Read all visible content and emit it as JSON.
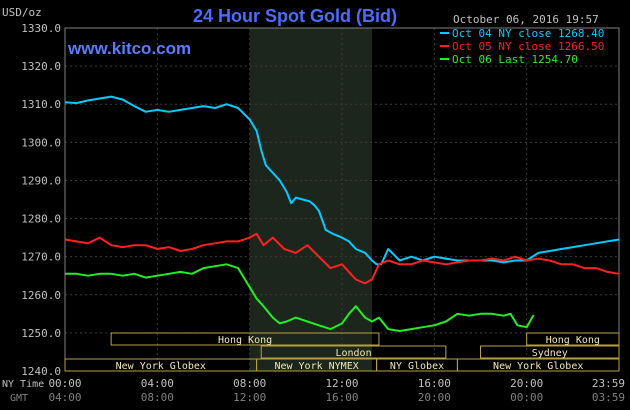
{
  "chart_data": {
    "type": "line",
    "title": "24 Hour Spot Gold (Bid)",
    "unit_label": "USD/oz",
    "watermark": "www.kitco.com",
    "timestamp": "October 06, 2016 19:57",
    "ylim": [
      1240,
      1330
    ],
    "y_ticks": [
      "1330.0",
      "1320.0",
      "1310.0",
      "1300.0",
      "1290.0",
      "1280.0",
      "1270.0",
      "1260.0",
      "1250.0",
      "1240.0"
    ],
    "y_tick_values": [
      1330,
      1320,
      1310,
      1300,
      1290,
      1280,
      1270,
      1260,
      1250,
      1240
    ],
    "x_row_labels": {
      "ny": "NY Time",
      "gmt": "GMT"
    },
    "x_ticks_ny": [
      "00:00",
      "04:00",
      "08:00",
      "12:00",
      "16:00",
      "20:00",
      "23:59"
    ],
    "x_ticks_gmt": [
      "04:00",
      "08:00",
      "12:00",
      "16:00",
      "20:00",
      "00:00",
      "03:59"
    ],
    "x_tick_hours": [
      0,
      4,
      8,
      12,
      16,
      20,
      23.98
    ],
    "highlight_hours": [
      8,
      13.3
    ],
    "legend": [
      {
        "label": "Oct 04 NY close 1268.40",
        "color": "#00ccff"
      },
      {
        "label": "Oct 05 NY close 1266.50",
        "color": "#ff2020"
      },
      {
        "label": "Oct 06 Last 1254.70",
        "color": "#22ee22"
      }
    ],
    "sessions": [
      {
        "label": "Hong Kong",
        "row": 0,
        "start": 2.0,
        "end": 13.6
      },
      {
        "label": "London",
        "row": 1,
        "start": 8.5,
        "end": 16.5
      },
      {
        "label": "New York Globex",
        "row": 2,
        "start": 0.0,
        "end": 8.3
      },
      {
        "label": "New York NYMEX",
        "row": 2,
        "start": 8.3,
        "end": 13.5
      },
      {
        "label": "NY Globex",
        "row": 2,
        "start": 13.5,
        "end": 17.0
      },
      {
        "label": "Hong Kong",
        "row": 0,
        "start": 20.0,
        "end": 24.0
      },
      {
        "label": "Sydney",
        "row": 1,
        "start": 18.0,
        "end": 24.0
      },
      {
        "label": "New York Globex",
        "row": 2,
        "start": 17.0,
        "end": 24.0
      }
    ],
    "series": [
      {
        "name": "Oct 04 NY close 1268.40",
        "color": "#00ccff",
        "x": [
          0,
          0.5,
          1,
          1.5,
          2,
          2.5,
          3,
          3.5,
          4,
          4.5,
          5,
          5.5,
          6,
          6.5,
          7,
          7.5,
          8,
          8.3,
          8.5,
          8.7,
          9,
          9.3,
          9.6,
          9.8,
          10,
          10.3,
          10.6,
          10.8,
          11,
          11.3,
          11.6,
          12,
          12.3,
          12.6,
          13,
          13.3,
          13.5,
          13.7,
          14,
          14.5,
          15,
          15.5,
          16,
          16.5,
          17,
          17.5,
          18,
          18.5,
          19,
          19.5,
          20,
          20.5,
          21,
          21.5,
          22,
          22.5,
          23,
          23.5,
          24
        ],
        "y": [
          1310.5,
          1310.3,
          1311,
          1311.5,
          1312,
          1311.2,
          1309.5,
          1308,
          1308.5,
          1308,
          1308.5,
          1309,
          1309.5,
          1309,
          1310,
          1309,
          1306,
          1303,
          1298,
          1294,
          1292,
          1290,
          1287,
          1284,
          1285.5,
          1285,
          1284.5,
          1283.5,
          1282,
          1277,
          1276,
          1275,
          1274,
          1272,
          1271,
          1269,
          1268,
          1268,
          1272,
          1269,
          1270,
          1269,
          1270,
          1269.5,
          1269,
          1269,
          1269,
          1269,
          1268.5,
          1269,
          1269,
          1271,
          1271.5,
          1272,
          1272.5,
          1273,
          1273.5,
          1274,
          1274.5
        ]
      },
      {
        "name": "Oct 05 NY close 1266.50",
        "color": "#ff2020",
        "x": [
          0,
          0.5,
          1,
          1.5,
          2,
          2.5,
          3,
          3.5,
          4,
          4.5,
          5,
          5.5,
          6,
          6.5,
          7,
          7.5,
          8,
          8.3,
          8.6,
          9,
          9.5,
          10,
          10.5,
          11,
          11.5,
          12,
          12.3,
          12.6,
          13,
          13.3,
          13.6,
          14,
          14.5,
          15,
          15.5,
          16,
          16.5,
          17,
          17.5,
          18,
          18.5,
          19,
          19.5,
          20,
          20.5,
          21,
          21.5,
          22,
          22.5,
          23,
          23.5,
          24
        ],
        "y": [
          1274.5,
          1274,
          1273.5,
          1275,
          1273,
          1272.5,
          1273,
          1273,
          1272,
          1272.5,
          1271.5,
          1272,
          1273,
          1273.5,
          1274,
          1274,
          1275,
          1276,
          1273,
          1275,
          1272,
          1271,
          1273,
          1270,
          1267,
          1268,
          1266,
          1264,
          1263,
          1264,
          1268,
          1269,
          1268,
          1268,
          1269,
          1268.5,
          1268,
          1268.5,
          1269,
          1269,
          1269.5,
          1269,
          1270,
          1269,
          1269.5,
          1269,
          1268,
          1268,
          1267,
          1267,
          1266,
          1265.5
        ]
      },
      {
        "name": "Oct 06 Last 1254.70",
        "color": "#22ee22",
        "x": [
          0,
          0.5,
          1,
          1.5,
          2,
          2.5,
          3,
          3.5,
          4,
          4.5,
          5,
          5.5,
          6,
          6.5,
          7,
          7.5,
          8,
          8.3,
          8.6,
          9,
          9.3,
          9.6,
          10,
          10.5,
          11,
          11.5,
          12,
          12.3,
          12.6,
          13,
          13.3,
          13.6,
          14,
          14.5,
          15,
          15.5,
          16,
          16.5,
          17,
          17.5,
          18,
          18.5,
          19,
          19.3,
          19.6,
          20,
          20.3
        ],
        "y": [
          1265.5,
          1265.5,
          1265,
          1265.5,
          1265.5,
          1265,
          1265.5,
          1264.5,
          1265,
          1265.5,
          1266,
          1265.5,
          1267,
          1267.5,
          1268,
          1267,
          1262,
          1259,
          1257,
          1254,
          1252.5,
          1253,
          1254,
          1253,
          1252,
          1251,
          1252.5,
          1255,
          1257,
          1254,
          1253,
          1254,
          1251,
          1250.5,
          1251,
          1251.5,
          1252,
          1253,
          1255,
          1254.5,
          1255,
          1255,
          1254.5,
          1255,
          1252,
          1251.5,
          1254.7
        ]
      }
    ]
  }
}
